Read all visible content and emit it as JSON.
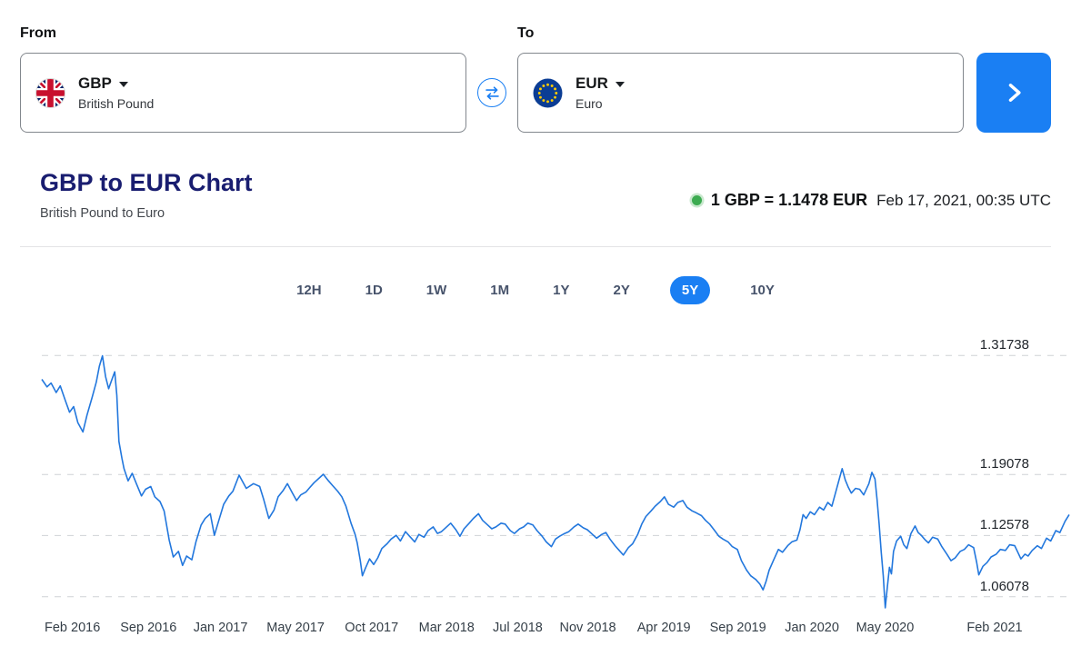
{
  "converter": {
    "from_label": "From",
    "to_label": "To",
    "from": {
      "code": "GBP",
      "name": "British Pound"
    },
    "to": {
      "code": "EUR",
      "name": "Euro"
    }
  },
  "chart_header": {
    "title": "GBP to EUR Chart",
    "subtitle": "British Pound to Euro",
    "rate": "1 GBP = 1.1478 EUR",
    "timestamp": "Feb 17, 2021, 00:35 UTC"
  },
  "ranges": {
    "options": [
      "12H",
      "1D",
      "1W",
      "1M",
      "1Y",
      "2Y",
      "5Y",
      "10Y"
    ],
    "selected": "5Y"
  },
  "colors": {
    "accent_blue": "#1a7ff3",
    "chart_line": "#2277dd",
    "title_indigo": "#191d70",
    "positive_green": "#3cab50"
  },
  "chart_data": {
    "type": "line",
    "pair": "GBP/EUR",
    "period": "5Y",
    "xlabel": "",
    "ylabel": "",
    "grid": "dashed-horizontal",
    "legend": "none",
    "ylim": [
      1.045,
      1.335
    ],
    "gridlines": [
      1.31738,
      1.19078,
      1.12578,
      1.06078
    ],
    "gridline_labels": [
      "1.31738",
      "1.19078",
      "1.12578",
      "1.06078"
    ],
    "x_ticks": [
      {
        "label": "Feb 2016",
        "pos": 0.031
      },
      {
        "label": "Sep 2016",
        "pos": 0.108
      },
      {
        "label": "Jan 2017",
        "pos": 0.181
      },
      {
        "label": "May 2017",
        "pos": 0.257
      },
      {
        "label": "Oct 2017",
        "pos": 0.334
      },
      {
        "label": "Mar 2018",
        "pos": 0.41
      },
      {
        "label": "Jul 2018",
        "pos": 0.482
      },
      {
        "label": "Nov 2018",
        "pos": 0.553
      },
      {
        "label": "Apr 2019",
        "pos": 0.63
      },
      {
        "label": "Sep 2019",
        "pos": 0.705
      },
      {
        "label": "Jan 2020",
        "pos": 0.78
      },
      {
        "label": "May 2020",
        "pos": 0.854
      },
      {
        "label": "Feb 2021",
        "pos": 0.965
      }
    ],
    "series": [
      {
        "name": "GBP to EUR",
        "points": [
          [
            0.0,
            1.292
          ],
          [
            0.005,
            1.284
          ],
          [
            0.009,
            1.288
          ],
          [
            0.014,
            1.278
          ],
          [
            0.018,
            1.285
          ],
          [
            0.023,
            1.269
          ],
          [
            0.027,
            1.257
          ],
          [
            0.031,
            1.263
          ],
          [
            0.035,
            1.246
          ],
          [
            0.04,
            1.236
          ],
          [
            0.044,
            1.254
          ],
          [
            0.049,
            1.273
          ],
          [
            0.053,
            1.289
          ],
          [
            0.056,
            1.306
          ],
          [
            0.059,
            1.317
          ],
          [
            0.062,
            1.295
          ],
          [
            0.065,
            1.282
          ],
          [
            0.068,
            1.291
          ],
          [
            0.071,
            1.3
          ],
          [
            0.073,
            1.275
          ],
          [
            0.075,
            1.226
          ],
          [
            0.078,
            1.208
          ],
          [
            0.08,
            1.197
          ],
          [
            0.084,
            1.184
          ],
          [
            0.088,
            1.192
          ],
          [
            0.092,
            1.181
          ],
          [
            0.097,
            1.168
          ],
          [
            0.101,
            1.175
          ],
          [
            0.106,
            1.178
          ],
          [
            0.11,
            1.167
          ],
          [
            0.115,
            1.162
          ],
          [
            0.119,
            1.152
          ],
          [
            0.124,
            1.121
          ],
          [
            0.128,
            1.103
          ],
          [
            0.133,
            1.109
          ],
          [
            0.137,
            1.094
          ],
          [
            0.141,
            1.104
          ],
          [
            0.146,
            1.1
          ],
          [
            0.15,
            1.119
          ],
          [
            0.155,
            1.137
          ],
          [
            0.159,
            1.144
          ],
          [
            0.164,
            1.149
          ],
          [
            0.168,
            1.126
          ],
          [
            0.172,
            1.141
          ],
          [
            0.177,
            1.159
          ],
          [
            0.182,
            1.168
          ],
          [
            0.186,
            1.173
          ],
          [
            0.192,
            1.19
          ],
          [
            0.196,
            1.182
          ],
          [
            0.199,
            1.176
          ],
          [
            0.206,
            1.181
          ],
          [
            0.212,
            1.178
          ],
          [
            0.216,
            1.164
          ],
          [
            0.221,
            1.144
          ],
          [
            0.226,
            1.153
          ],
          [
            0.23,
            1.167
          ],
          [
            0.235,
            1.174
          ],
          [
            0.239,
            1.181
          ],
          [
            0.244,
            1.171
          ],
          [
            0.248,
            1.163
          ],
          [
            0.252,
            1.169
          ],
          [
            0.257,
            1.172
          ],
          [
            0.261,
            1.177
          ],
          [
            0.265,
            1.182
          ],
          [
            0.27,
            1.187
          ],
          [
            0.274,
            1.191
          ],
          [
            0.279,
            1.184
          ],
          [
            0.283,
            1.179
          ],
          [
            0.288,
            1.173
          ],
          [
            0.292,
            1.167
          ],
          [
            0.296,
            1.157
          ],
          [
            0.301,
            1.139
          ],
          [
            0.305,
            1.127
          ],
          [
            0.307,
            1.118
          ],
          [
            0.31,
            1.099
          ],
          [
            0.312,
            1.083
          ],
          [
            0.315,
            1.091
          ],
          [
            0.319,
            1.101
          ],
          [
            0.323,
            1.095
          ],
          [
            0.327,
            1.102
          ],
          [
            0.331,
            1.112
          ],
          [
            0.336,
            1.117
          ],
          [
            0.34,
            1.122
          ],
          [
            0.345,
            1.126
          ],
          [
            0.349,
            1.12
          ],
          [
            0.354,
            1.13
          ],
          [
            0.358,
            1.125
          ],
          [
            0.363,
            1.119
          ],
          [
            0.367,
            1.127
          ],
          [
            0.372,
            1.124
          ],
          [
            0.376,
            1.131
          ],
          [
            0.381,
            1.135
          ],
          [
            0.385,
            1.128
          ],
          [
            0.389,
            1.13
          ],
          [
            0.394,
            1.135
          ],
          [
            0.398,
            1.139
          ],
          [
            0.403,
            1.132
          ],
          [
            0.407,
            1.125
          ],
          [
            0.411,
            1.133
          ],
          [
            0.416,
            1.139
          ],
          [
            0.42,
            1.144
          ],
          [
            0.425,
            1.149
          ],
          [
            0.429,
            1.142
          ],
          [
            0.434,
            1.137
          ],
          [
            0.438,
            1.133
          ],
          [
            0.442,
            1.135
          ],
          [
            0.447,
            1.139
          ],
          [
            0.451,
            1.138
          ],
          [
            0.456,
            1.131
          ],
          [
            0.46,
            1.128
          ],
          [
            0.465,
            1.133
          ],
          [
            0.469,
            1.135
          ],
          [
            0.473,
            1.139
          ],
          [
            0.478,
            1.137
          ],
          [
            0.482,
            1.131
          ],
          [
            0.487,
            1.125
          ],
          [
            0.491,
            1.119
          ],
          [
            0.496,
            1.114
          ],
          [
            0.5,
            1.122
          ],
          [
            0.504,
            1.125
          ],
          [
            0.509,
            1.128
          ],
          [
            0.513,
            1.13
          ],
          [
            0.518,
            1.135
          ],
          [
            0.522,
            1.138
          ],
          [
            0.527,
            1.134
          ],
          [
            0.531,
            1.132
          ],
          [
            0.536,
            1.127
          ],
          [
            0.54,
            1.123
          ],
          [
            0.545,
            1.127
          ],
          [
            0.549,
            1.129
          ],
          [
            0.553,
            1.122
          ],
          [
            0.558,
            1.115
          ],
          [
            0.562,
            1.11
          ],
          [
            0.566,
            1.105
          ],
          [
            0.571,
            1.113
          ],
          [
            0.575,
            1.117
          ],
          [
            0.58,
            1.127
          ],
          [
            0.584,
            1.138
          ],
          [
            0.588,
            1.146
          ],
          [
            0.593,
            1.152
          ],
          [
            0.597,
            1.157
          ],
          [
            0.602,
            1.162
          ],
          [
            0.606,
            1.167
          ],
          [
            0.61,
            1.159
          ],
          [
            0.615,
            1.156
          ],
          [
            0.619,
            1.161
          ],
          [
            0.624,
            1.163
          ],
          [
            0.628,
            1.156
          ],
          [
            0.633,
            1.152
          ],
          [
            0.637,
            1.15
          ],
          [
            0.642,
            1.147
          ],
          [
            0.646,
            1.142
          ],
          [
            0.65,
            1.138
          ],
          [
            0.655,
            1.131
          ],
          [
            0.659,
            1.125
          ],
          [
            0.663,
            1.122
          ],
          [
            0.668,
            1.119
          ],
          [
            0.672,
            1.114
          ],
          [
            0.677,
            1.111
          ],
          [
            0.681,
            1.099
          ],
          [
            0.686,
            1.089
          ],
          [
            0.69,
            1.083
          ],
          [
            0.695,
            1.079
          ],
          [
            0.699,
            1.074
          ],
          [
            0.702,
            1.068
          ],
          [
            0.705,
            1.077
          ],
          [
            0.708,
            1.089
          ],
          [
            0.712,
            1.099
          ],
          [
            0.717,
            1.111
          ],
          [
            0.721,
            1.108
          ],
          [
            0.726,
            1.115
          ],
          [
            0.73,
            1.119
          ],
          [
            0.735,
            1.121
          ],
          [
            0.738,
            1.132
          ],
          [
            0.741,
            1.148
          ],
          [
            0.744,
            1.144
          ],
          [
            0.748,
            1.151
          ],
          [
            0.752,
            1.148
          ],
          [
            0.757,
            1.156
          ],
          [
            0.761,
            1.153
          ],
          [
            0.765,
            1.161
          ],
          [
            0.769,
            1.157
          ],
          [
            0.773,
            1.173
          ],
          [
            0.777,
            1.189
          ],
          [
            0.779,
            1.197
          ],
          [
            0.782,
            1.185
          ],
          [
            0.785,
            1.177
          ],
          [
            0.788,
            1.171
          ],
          [
            0.792,
            1.176
          ],
          [
            0.796,
            1.175
          ],
          [
            0.8,
            1.169
          ],
          [
            0.805,
            1.181
          ],
          [
            0.808,
            1.193
          ],
          [
            0.811,
            1.186
          ],
          [
            0.813,
            1.164
          ],
          [
            0.815,
            1.139
          ],
          [
            0.817,
            1.109
          ],
          [
            0.819,
            1.083
          ],
          [
            0.821,
            1.049
          ],
          [
            0.823,
            1.071
          ],
          [
            0.825,
            1.092
          ],
          [
            0.827,
            1.085
          ],
          [
            0.829,
            1.109
          ],
          [
            0.832,
            1.12
          ],
          [
            0.836,
            1.125
          ],
          [
            0.839,
            1.116
          ],
          [
            0.842,
            1.112
          ],
          [
            0.846,
            1.128
          ],
          [
            0.85,
            1.136
          ],
          [
            0.853,
            1.129
          ],
          [
            0.856,
            1.126
          ],
          [
            0.86,
            1.121
          ],
          [
            0.863,
            1.118
          ],
          [
            0.867,
            1.124
          ],
          [
            0.872,
            1.122
          ],
          [
            0.876,
            1.114
          ],
          [
            0.881,
            1.106
          ],
          [
            0.885,
            1.099
          ],
          [
            0.889,
            1.102
          ],
          [
            0.894,
            1.109
          ],
          [
            0.898,
            1.111
          ],
          [
            0.902,
            1.116
          ],
          [
            0.907,
            1.113
          ],
          [
            0.91,
            1.097
          ],
          [
            0.912,
            1.084
          ],
          [
            0.916,
            1.093
          ],
          [
            0.92,
            1.097
          ],
          [
            0.924,
            1.103
          ],
          [
            0.929,
            1.106
          ],
          [
            0.933,
            1.111
          ],
          [
            0.938,
            1.11
          ],
          [
            0.942,
            1.116
          ],
          [
            0.947,
            1.115
          ],
          [
            0.95,
            1.108
          ],
          [
            0.953,
            1.101
          ],
          [
            0.957,
            1.106
          ],
          [
            0.96,
            1.104
          ],
          [
            0.964,
            1.11
          ],
          [
            0.969,
            1.115
          ],
          [
            0.973,
            1.112
          ],
          [
            0.978,
            1.123
          ],
          [
            0.982,
            1.12
          ],
          [
            0.987,
            1.131
          ],
          [
            0.991,
            1.129
          ],
          [
            0.996,
            1.141
          ],
          [
            1.0,
            1.148
          ]
        ]
      }
    ]
  }
}
